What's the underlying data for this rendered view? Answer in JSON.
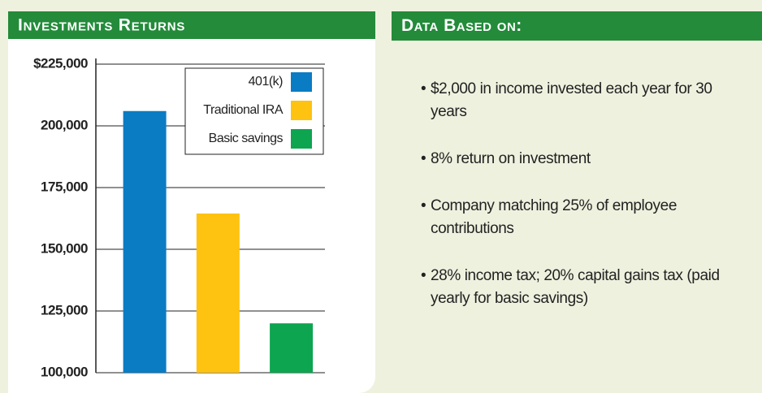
{
  "chart_data": {
    "type": "bar",
    "title": "Investments Returns",
    "categories": [
      "401(k)",
      "Traditional IRA",
      "Basic savings"
    ],
    "values": [
      206000,
      164500,
      120000
    ],
    "colors": [
      "#0a7cc4",
      "#fec210",
      "#0ea550"
    ],
    "ylim": [
      100000,
      225000
    ],
    "yticks": [
      {
        "value": 100000,
        "label": "100,000"
      },
      {
        "value": 125000,
        "label": "125,000"
      },
      {
        "value": 150000,
        "label": "150,000"
      },
      {
        "value": 175000,
        "label": "175,000"
      },
      {
        "value": 200000,
        "label": "200,000"
      },
      {
        "value": 225000,
        "label": "$225,000"
      }
    ],
    "grid": true,
    "legend": "upper right"
  },
  "notes": {
    "title": "Data Based on:",
    "items": [
      "$2,000 in income invested each year for 30 years",
      "8% return on investment",
      "Company matching 25% of employee contributions",
      "28% income tax; 20% capital gains tax (paid yearly for basic savings)"
    ]
  }
}
